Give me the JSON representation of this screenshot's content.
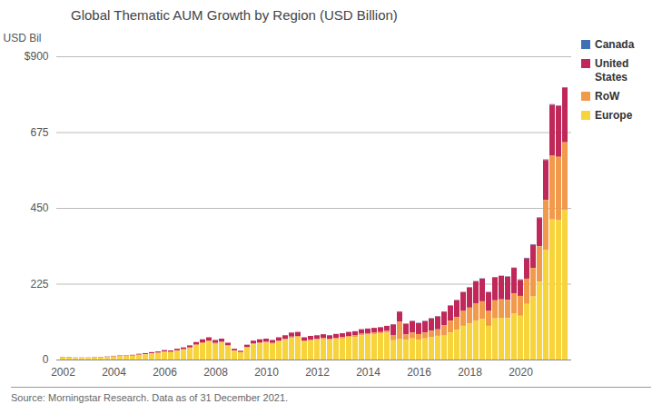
{
  "chart_data": {
    "type": "bar",
    "title": "Global Thematic AUM Growth by Region (USD Billion)",
    "y_label": "USD Bil",
    "caption": "Source: Morningstar Research. Data as of 31 December 2021.",
    "stacked": true,
    "grid": true,
    "legend": "top-right",
    "ylim": [
      0,
      900
    ],
    "yticks": [
      0,
      225,
      450,
      675,
      {
        "value": 900,
        "label": "$900"
      }
    ],
    "categories": [
      "2002",
      null,
      null,
      null,
      null,
      null,
      null,
      null,
      "2004",
      null,
      null,
      null,
      null,
      null,
      null,
      null,
      "2006",
      null,
      null,
      null,
      null,
      null,
      null,
      null,
      "2008",
      null,
      null,
      null,
      null,
      null,
      null,
      null,
      "2010",
      null,
      null,
      null,
      null,
      null,
      null,
      null,
      "2012",
      null,
      null,
      null,
      null,
      null,
      null,
      null,
      "2014",
      null,
      null,
      null,
      null,
      null,
      null,
      null,
      "2016",
      null,
      null,
      null,
      null,
      null,
      null,
      null,
      "2018",
      null,
      null,
      null,
      null,
      null,
      null,
      null,
      "2020",
      null,
      null,
      null,
      null,
      null,
      null,
      null
    ],
    "series": [
      {
        "name": "Canada",
        "color": "#3f6fb4",
        "values": [
          0,
          0,
          0,
          0,
          0,
          0,
          0,
          0,
          0,
          0,
          0,
          0,
          0,
          0,
          0,
          0,
          0,
          0,
          0,
          0,
          0,
          0,
          0,
          0,
          0,
          0,
          0,
          0,
          0,
          0,
          0,
          0,
          0,
          0,
          0,
          0,
          0,
          0,
          0,
          0,
          0,
          0,
          0,
          0,
          0,
          0,
          0,
          0,
          0,
          0,
          0,
          0,
          1,
          1,
          1,
          1,
          1,
          1,
          1,
          1,
          1,
          1,
          1,
          1,
          1,
          1,
          1,
          1,
          1,
          1,
          1,
          1,
          2,
          2,
          2,
          2,
          2,
          2,
          2,
          2
        ]
      },
      {
        "name": "United States",
        "color": "#c0285a",
        "values": [
          1.2,
          1.0,
          0.9,
          0.9,
          0.9,
          1.0,
          1.2,
          1.3,
          1.6,
          1.8,
          1.8,
          2.1,
          2.5,
          2.8,
          3.3,
          3.6,
          4.2,
          4.0,
          4.8,
          5.4,
          6.3,
          7.8,
          9,
          9.9,
          8.7,
          9.3,
          7.5,
          4.8,
          3.9,
          6.6,
          8.4,
          9,
          9.3,
          8.7,
          9.9,
          10.8,
          12,
          12.3,
          9.9,
          10.5,
          10.8,
          11.2,
          10.8,
          11.4,
          11.7,
          12.3,
          12.6,
          13.5,
          13.8,
          14.1,
          14.4,
          15,
          31.2,
          30,
          31.8,
          34.2,
          32.4,
          34.2,
          36.6,
          38.4,
          39.8,
          44.8,
          49.3,
          56,
          59.9,
          65,
          67.2,
          56,
          68.3,
          69.4,
          68.9,
          76.2,
          47.2,
          60,
          68,
          84,
          118.4,
          151.2,
          150.4,
          161.2
        ]
      },
      {
        "name": "RoW",
        "color": "#f29a4c",
        "values": [
          0.4,
          0.4,
          0.3,
          0.3,
          0.3,
          0.4,
          0.4,
          0.5,
          0.6,
          0.6,
          0.6,
          0.7,
          0.9,
          1.0,
          1.1,
          1.2,
          1.4,
          1.4,
          1.6,
          1.8,
          2.1,
          2.6,
          3,
          3.3,
          2.9,
          3.1,
          2.5,
          1.6,
          1.3,
          2.2,
          2.8,
          3,
          3.1,
          2.9,
          3.3,
          3.6,
          4,
          4.1,
          3.3,
          3.5,
          3.6,
          3.8,
          3.6,
          3.8,
          3.9,
          4.1,
          4.2,
          4.5,
          4.6,
          4.7,
          4.8,
          5,
          15.6,
          50,
          15.9,
          17.1,
          16.2,
          17.1,
          18.3,
          19.2,
          31.2,
          35.2,
          38.7,
          44,
          47.1,
          51,
          52.8,
          44,
          53.7,
          54.6,
          54.1,
          59.8,
          59,
          75,
          85,
          105,
          148,
          189,
          188,
          201.5
        ]
      },
      {
        "name": "Europe",
        "color": "#f7d33c",
        "values": [
          6.4,
          5.6,
          4.8,
          4.8,
          4.8,
          5.6,
          6.4,
          7.2,
          8.8,
          9.6,
          9.6,
          11.2,
          13.6,
          15.2,
          17.6,
          19.2,
          22.4,
          21.6,
          25.6,
          28.8,
          33.6,
          41.6,
          48,
          52.8,
          46.4,
          49.6,
          40,
          25.6,
          20.8,
          35.2,
          44.8,
          48,
          49.6,
          46.4,
          52.8,
          57.6,
          64,
          65.6,
          52.8,
          56,
          57.6,
          60,
          57.6,
          60.8,
          62.4,
          65.6,
          67.2,
          72,
          73.6,
          75.2,
          76.8,
          80,
          57.2,
          62,
          58.3,
          62.7,
          59.4,
          62.7,
          67.1,
          70.4,
          71,
          80,
          88,
          100,
          107,
          116,
          120,
          100,
          122,
          124,
          123,
          136,
          129.8,
          165,
          187,
          231,
          325.6,
          415.8,
          413.6,
          443.3
        ]
      }
    ]
  }
}
